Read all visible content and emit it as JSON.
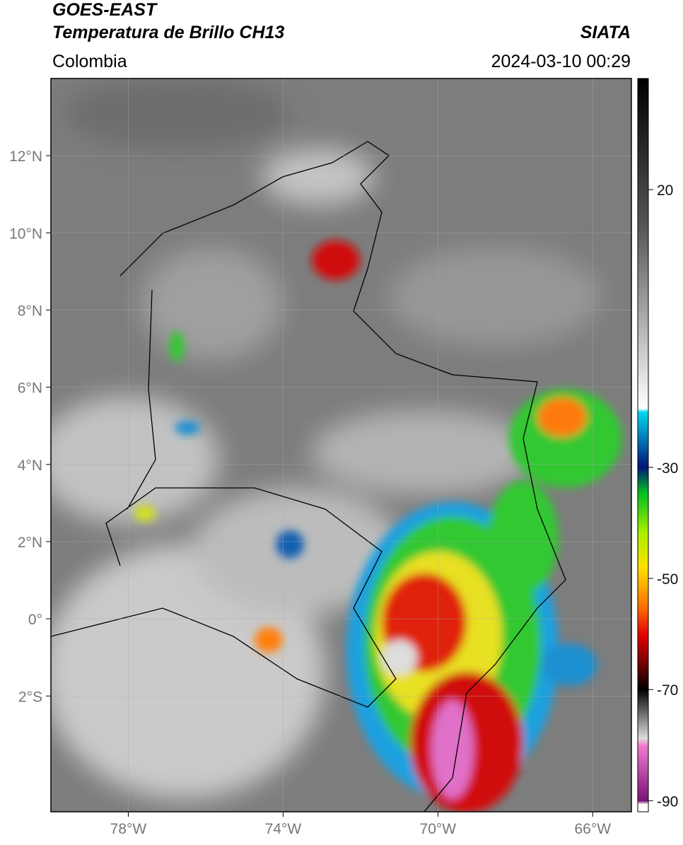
{
  "header": {
    "title_line1": "GOES-EAST",
    "title_line2": "Temperatura de Brillo CH13",
    "region": "Colombia",
    "source": "SIATA",
    "datetime": "2024-03-10 00:29"
  },
  "map": {
    "xlim": [
      -80,
      -65
    ],
    "ylim": [
      -5,
      14
    ],
    "xticks": [
      {
        "value": -78,
        "label": "78°W"
      },
      {
        "value": -74,
        "label": "74°W"
      },
      {
        "value": -70,
        "label": "70°W"
      },
      {
        "value": -66,
        "label": "66°W"
      }
    ],
    "yticks": [
      {
        "value": 12,
        "label": "12°N"
      },
      {
        "value": 10,
        "label": "10°N"
      },
      {
        "value": 8,
        "label": "8°N"
      },
      {
        "value": 6,
        "label": "6°N"
      },
      {
        "value": 4,
        "label": "4°N"
      },
      {
        "value": 2,
        "label": "2°N"
      },
      {
        "value": 0,
        "label": "0°"
      },
      {
        "value": -2,
        "label": "2°S"
      }
    ]
  },
  "colorbar": {
    "lim": [
      -92,
      40
    ],
    "ticks": [
      20,
      -30,
      -50,
      -70,
      -90
    ]
  }
}
